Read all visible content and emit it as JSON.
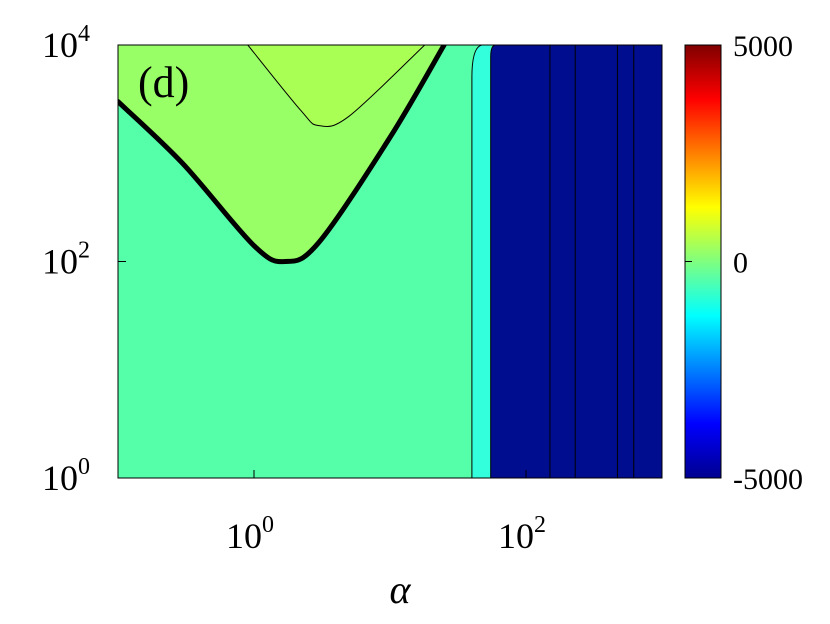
{
  "chart_data": {
    "type": "heatmap",
    "subtype": "filled-contour",
    "panel_label": "(d)",
    "xlabel": "α",
    "ylabel": "",
    "x_scale": "log",
    "y_scale": "log",
    "xlim": [
      0.1,
      1000
    ],
    "ylim": [
      1,
      10000
    ],
    "x_ticks": [
      {
        "value": 1,
        "base": "10",
        "exp": "0"
      },
      {
        "value": 100,
        "base": "10",
        "exp": "2"
      }
    ],
    "y_ticks": [
      {
        "value": 1,
        "base": "10",
        "exp": "0"
      },
      {
        "value": 100,
        "base": "10",
        "exp": "2"
      },
      {
        "value": 10000,
        "base": "10",
        "exp": "4"
      }
    ],
    "colormap": "jet",
    "clim": [
      -5000,
      5000
    ],
    "colorbar_ticks": [
      "5000",
      "0",
      "-5000"
    ],
    "colorbar_tick_values": [
      5000,
      0,
      -5000
    ],
    "colorbar_side": "right",
    "regions": [
      {
        "name": "base",
        "level": 0,
        "color": "#55ffaa"
      },
      {
        "name": "upper-lobe",
        "level": 1000,
        "color": "#99ff66"
      },
      {
        "name": "upper-lobe-inner",
        "level": 1500,
        "color": "#aaff55"
      },
      {
        "name": "transition-strip",
        "level": -1500,
        "color": "#33ffdd"
      },
      {
        "name": "right-block",
        "level": -5000,
        "color": "#000d8f"
      }
    ],
    "zero_contour": [
      [
        0.1,
        3000
      ],
      [
        0.3,
        800
      ],
      [
        1,
        140
      ],
      [
        1.7,
        100
      ],
      [
        3,
        150
      ],
      [
        10,
        1400
      ],
      [
        25,
        10000
      ]
    ],
    "inner_contour": [
      [
        0.9,
        10000
      ],
      [
        2.2,
        2500
      ],
      [
        3,
        1800
      ],
      [
        5,
        2200
      ],
      [
        18,
        10000
      ]
    ],
    "vertical_contours_x": [
      40,
      55,
      150,
      230,
      470,
      620
    ]
  }
}
